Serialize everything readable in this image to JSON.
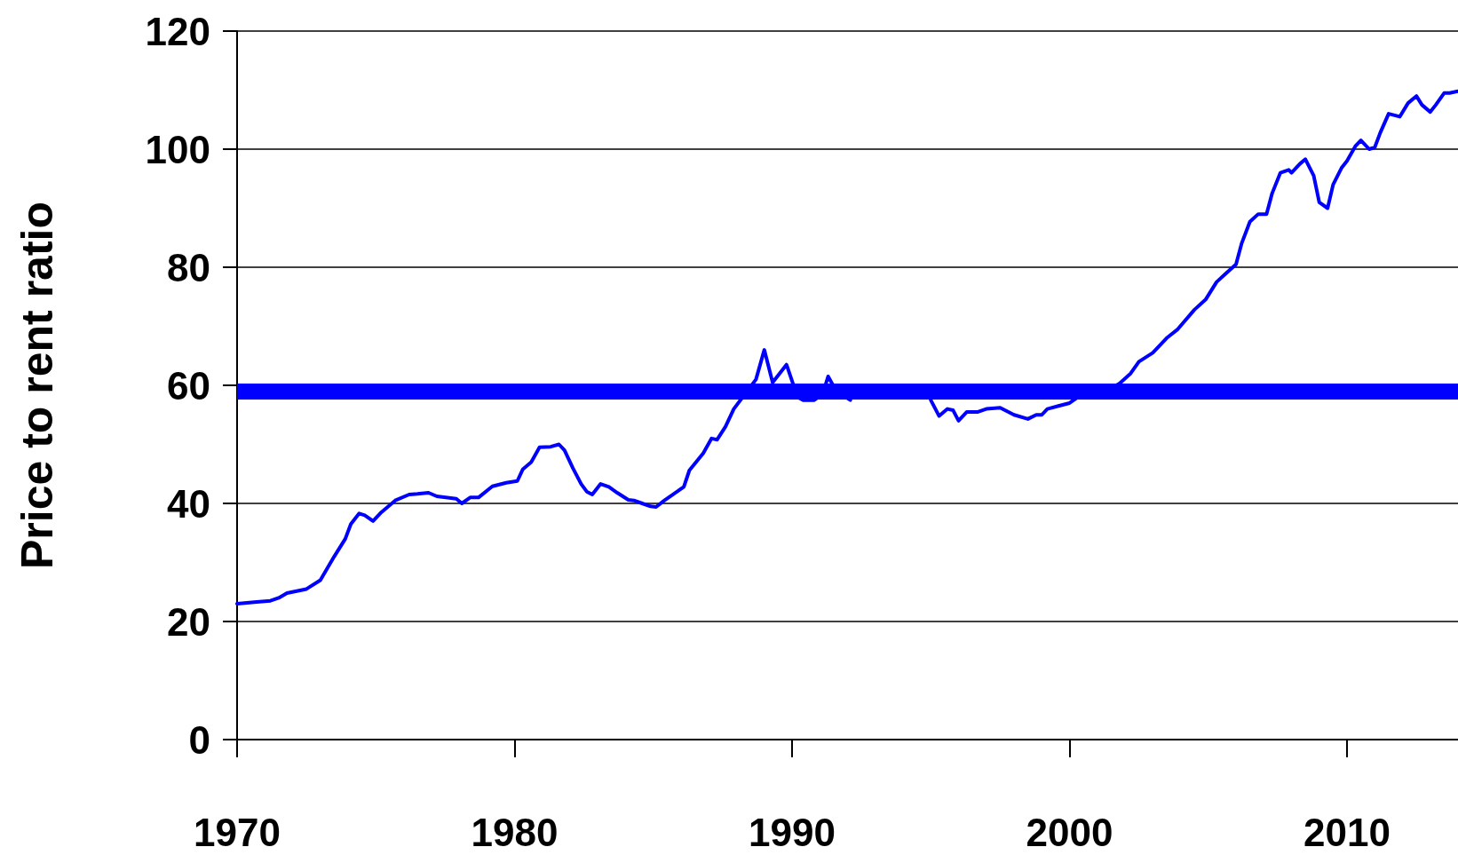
{
  "chart_data": {
    "type": "line",
    "ylabel": "Price to rent ratio",
    "x": [
      1970.0,
      1970.7,
      1971.2,
      1971.5,
      1971.8,
      1972.5,
      1973.0,
      1973.5,
      1973.9,
      1974.1,
      1974.4,
      1974.6,
      1974.9,
      1975.2,
      1975.7,
      1976.2,
      1976.5,
      1976.9,
      1977.2,
      1977.9,
      1978.1,
      1978.4,
      1978.7,
      1979.2,
      1979.7,
      1980.1,
      1980.3,
      1980.6,
      1980.9,
      1981.3,
      1981.6,
      1981.8,
      1982.1,
      1982.4,
      1982.6,
      1982.8,
      1983.1,
      1983.4,
      1983.7,
      1984.1,
      1984.3,
      1984.6,
      1984.9,
      1985.1,
      1985.4,
      1985.7,
      1986.1,
      1986.3,
      1986.8,
      1987.1,
      1987.3,
      1987.6,
      1987.9,
      1988.3,
      1988.7,
      1989.0,
      1989.3,
      1989.8,
      1990.2,
      1990.4,
      1990.8,
      1991.1,
      1991.3,
      1991.6,
      1992.1,
      1993.5,
      1995.0,
      1995.3,
      1995.6,
      1995.8,
      1996.0,
      1996.3,
      1996.7,
      1997.0,
      1997.5,
      1998.0,
      1998.5,
      1998.8,
      1999.0,
      1999.2,
      1999.6,
      2000.0,
      2000.3,
      2000.8,
      2001.5,
      2001.8,
      2002.2,
      2002.5,
      2003.0,
      2003.5,
      2003.9,
      2004.5,
      2004.9,
      2005.3,
      2005.6,
      2006.0,
      2006.2,
      2006.5,
      2006.8,
      2007.1,
      2007.3,
      2007.6,
      2007.9,
      2008.0,
      2008.3,
      2008.5,
      2008.8,
      2009.0,
      2009.3,
      2009.5,
      2009.8,
      2010.0,
      2010.3,
      2010.5,
      2010.8,
      2011.0,
      2011.2,
      2011.5,
      2011.9,
      2012.2,
      2012.5,
      2012.7,
      2013.0,
      2013.2,
      2013.5,
      2013.7,
      2014.0
    ],
    "series": [
      {
        "color": "#0000ff",
        "values": [
          23,
          23.3,
          23.5,
          24,
          24.8,
          25.5,
          27,
          31,
          34,
          36.5,
          38.3,
          38,
          37,
          38.5,
          40.5,
          41.5,
          41.6,
          41.8,
          41.2,
          40.8,
          40,
          41,
          41,
          42.9,
          43.5,
          43.8,
          45.8,
          47,
          49.5,
          49.6,
          50,
          49,
          46,
          43.3,
          42,
          41.5,
          43.3,
          42.8,
          41.8,
          40.6,
          40.5,
          40,
          39.5,
          39.4,
          40.5,
          41.5,
          42.8,
          45.6,
          48.5,
          51,
          50.8,
          53,
          56,
          58.5,
          61,
          66,
          60.5,
          63.5,
          58,
          57.5,
          57.5,
          58.5,
          61.5,
          59,
          57.5,
          null,
          57.5,
          54.8,
          56,
          55.8,
          54,
          55.5,
          55.5,
          56,
          56.2,
          55,
          54.3,
          55,
          55,
          56,
          56.5,
          57,
          58,
          59,
          59.5,
          60.3,
          62,
          64,
          65.5,
          68,
          69.5,
          72.8,
          74.5,
          77.5,
          78.8,
          80.5,
          84,
          87.7,
          89,
          89,
          92.5,
          96,
          96.5,
          96,
          97.5,
          98.3,
          95.5,
          91,
          90,
          94,
          96.8,
          98,
          100.5,
          101.5,
          100,
          100.3,
          102.8,
          106,
          105.5,
          107.8,
          109,
          107.5,
          106.3,
          107.5,
          109.5,
          109.5,
          109.8
        ]
      }
    ],
    "xlim": [
      1970,
      2014
    ],
    "xticks": [
      1970,
      1980,
      1990,
      2000,
      2010
    ],
    "ylim": [
      0,
      120
    ],
    "yticks": [
      0,
      20,
      40,
      60,
      80,
      100,
      120
    ],
    "ref_lines": [
      {
        "axis": "y",
        "value": 59,
        "color": "#0000ff"
      }
    ],
    "grid": "y",
    "marker": "none",
    "line_style": "solid"
  }
}
